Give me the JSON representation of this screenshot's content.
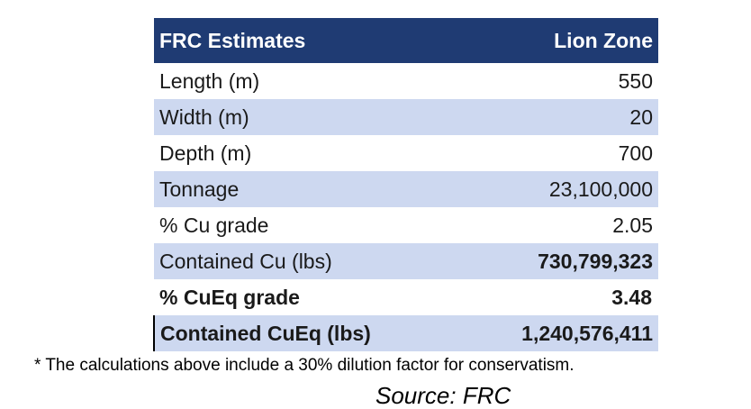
{
  "table": {
    "header": {
      "label": "FRC Estimates",
      "value": "Lion Zone"
    },
    "rows": [
      {
        "label": "Length (m)",
        "value": "550"
      },
      {
        "label": "Width (m)",
        "value": "20"
      },
      {
        "label": "Depth (m)",
        "value": "700"
      },
      {
        "label": "Tonnage",
        "value": "23,100,000"
      },
      {
        "label": "% Cu grade",
        "value": "2.05"
      },
      {
        "label": "Contained Cu (lbs)",
        "value": "730,799,323"
      },
      {
        "label": "% CuEq grade",
        "value": "3.48"
      },
      {
        "label": "Contained CuEq (lbs)",
        "value": "1,240,576,411"
      }
    ]
  },
  "footnote": "* The calculations above include a 30% dilution factor for conservatism.",
  "source": "Source: FRC",
  "colors": {
    "header_bg": "#1f3b73",
    "header_text": "#ffffff",
    "shaded_row": "#cdd8f0"
  }
}
